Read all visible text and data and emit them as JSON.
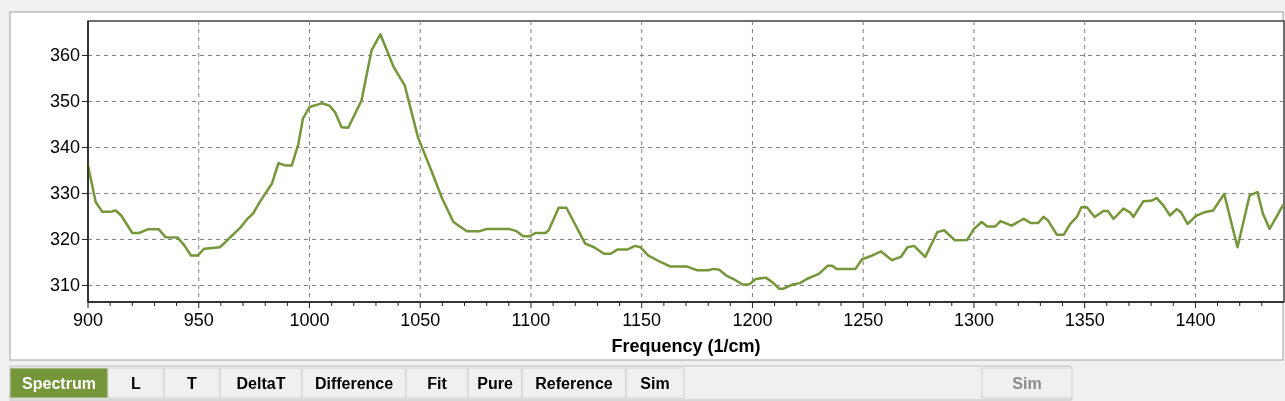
{
  "chart_data": {
    "type": "line",
    "xlabel": "Frequency (1/cm)",
    "xlim": [
      900,
      1440
    ],
    "ylim": [
      306.4,
      367.5
    ],
    "xticks": [
      900,
      {
        "value": 910,
        "label": null
      },
      {
        "value": 920,
        "label": null
      },
      {
        "value": 930,
        "label": null
      },
      {
        "value": 940,
        "label": null
      },
      950,
      {
        "value": 960,
        "label": null
      },
      {
        "value": 970,
        "label": null
      },
      {
        "value": 980,
        "label": null
      },
      {
        "value": 990,
        "label": null
      },
      1000,
      {
        "value": 1010,
        "label": null
      },
      {
        "value": 1020,
        "label": null
      },
      {
        "value": 1030,
        "label": null
      },
      {
        "value": 1040,
        "label": null
      },
      1050,
      {
        "value": 1060,
        "label": null
      },
      {
        "value": 1070,
        "label": null
      },
      {
        "value": 1080,
        "label": null
      },
      {
        "value": 1090,
        "label": null
      },
      1100,
      {
        "value": 1110,
        "label": null
      },
      {
        "value": 1120,
        "label": null
      },
      {
        "value": 1130,
        "label": null
      },
      {
        "value": 1140,
        "label": null
      },
      1150,
      {
        "value": 1160,
        "label": null
      },
      {
        "value": 1170,
        "label": null
      },
      {
        "value": 1180,
        "label": null
      },
      {
        "value": 1190,
        "label": null
      },
      1200,
      {
        "value": 1210,
        "label": null
      },
      {
        "value": 1220,
        "label": null
      },
      {
        "value": 1230,
        "label": null
      },
      {
        "value": 1240,
        "label": null
      },
      1250,
      {
        "value": 1260,
        "label": null
      },
      {
        "value": 1270,
        "label": null
      },
      {
        "value": 1280,
        "label": null
      },
      {
        "value": 1290,
        "label": null
      },
      1300,
      {
        "value": 1310,
        "label": null
      },
      {
        "value": 1320,
        "label": null
      },
      {
        "value": 1330,
        "label": null
      },
      {
        "value": 1340,
        "label": null
      },
      1350,
      {
        "value": 1360,
        "label": null
      },
      {
        "value": 1370,
        "label": null
      },
      {
        "value": 1380,
        "label": null
      },
      {
        "value": 1390,
        "label": null
      },
      1400,
      {
        "value": 1410,
        "label": null
      },
      {
        "value": 1420,
        "label": null
      },
      {
        "value": 1430,
        "label": null
      }
    ],
    "yticks": [
      310,
      320,
      330,
      340,
      350,
      360
    ],
    "grid": true,
    "line_style": "solid",
    "marker": "none",
    "series": [
      {
        "color": "#76963a",
        "x": [
          900,
          903.5,
          906.5,
          910,
          912.5,
          915,
          920,
          923,
          927,
          932,
          935,
          940.5,
          943.5,
          946.5,
          949.5,
          952.5,
          955,
          959.5,
          962,
          969,
          972,
          974.5,
          978,
          983,
          986,
          989,
          992,
          995,
          997,
          1000,
          1005.5,
          1009,
          1011.5,
          1014.5,
          1017.5,
          1023.5,
          1028,
          1032,
          1038,
          1043,
          1049,
          1055,
          1060,
          1065,
          1071,
          1077,
          1080,
          1090,
          1093.5,
          1096.5,
          1099.5,
          1102,
          1106.5,
          1108,
          1112.5,
          1116,
          1124.5,
          1128.5,
          1133,
          1136,
          1139,
          1143.5,
          1147,
          1149.5,
          1153,
          1158.5,
          1163,
          1170.5,
          1175,
          1180,
          1182.5,
          1185,
          1188,
          1191.5,
          1195.5,
          1198.5,
          1201.5,
          1206,
          1209,
          1212,
          1214,
          1218,
          1221.5,
          1224.5,
          1230,
          1234,
          1236,
          1238,
          1246.5,
          1249.5,
          1253.5,
          1258,
          1263,
          1267,
          1270,
          1273,
          1278,
          1283.5,
          1286.5,
          1291.5,
          1297,
          1300,
          1303.5,
          1306,
          1309.5,
          1312,
          1317,
          1322.5,
          1325.5,
          1329,
          1331.5,
          1333.5,
          1337.5,
          1340.5,
          1343.5,
          1346.5,
          1348.5,
          1351,
          1354.5,
          1358.5,
          1360.5,
          1363,
          1367.5,
          1370.5,
          1372,
          1376.5,
          1380,
          1382.5,
          1385.5,
          1388.5,
          1391.5,
          1393.5,
          1396.5,
          1400.5,
          1404,
          1408,
          1413,
          1419,
          1424.5,
          1428,
          1430.5,
          1433.5,
          1439.5
        ],
        "values": [
          336.1,
          328.1,
          326,
          326,
          326.3,
          325.2,
          321.4,
          321.4,
          322.2,
          322.2,
          320.5,
          320.4,
          318.7,
          316.5,
          316.5,
          318,
          318.1,
          318.3,
          319.4,
          322.7,
          324.5,
          325.6,
          328.5,
          332.1,
          336.6,
          336.1,
          336.1,
          340.8,
          346.2,
          348.8,
          349.6,
          349.1,
          347.7,
          344.4,
          344.3,
          350.2,
          361.1,
          364.6,
          357.5,
          353.5,
          342.2,
          335,
          328.8,
          323.8,
          321.8,
          321.8,
          322.3,
          322.3,
          321.8,
          320.7,
          320.7,
          321.4,
          321.4,
          322,
          326.9,
          326.9,
          319.1,
          318.3,
          316.9,
          316.9,
          317.8,
          317.8,
          318.6,
          318.3,
          316.5,
          315.1,
          314.1,
          314.1,
          313.3,
          313.3,
          313.6,
          313.4,
          312.2,
          311.4,
          310.2,
          310.2,
          311.4,
          311.7,
          310.7,
          309.3,
          309.3,
          310.2,
          310.5,
          311.4,
          312.5,
          314.3,
          314.3,
          313.6,
          313.6,
          315.7,
          316.4,
          317.4,
          315.5,
          316.2,
          318.3,
          318.6,
          316.2,
          321.6,
          322,
          319.8,
          319.9,
          322.3,
          323.8,
          322.8,
          322.8,
          324,
          323,
          324.5,
          323.6,
          323.6,
          324.9,
          324.1,
          321,
          321,
          323.4,
          324.9,
          327,
          327,
          324.9,
          326.2,
          326.2,
          324.5,
          326.7,
          325.9,
          324.9,
          328.3,
          328.4,
          329,
          327.4,
          325.2,
          326.6,
          325.9,
          323.4,
          325.2,
          325.9,
          326.3,
          329.9,
          318.3,
          329.6,
          330.3,
          325.6,
          322.3,
          327.4
        ]
      }
    ],
    "annotations": [
      "Spectrum",
      "L",
      "T",
      "DeltaT",
      "Difference",
      "Fit",
      "Pure",
      "Reference",
      "Sim",
      "Sim"
    ]
  }
}
